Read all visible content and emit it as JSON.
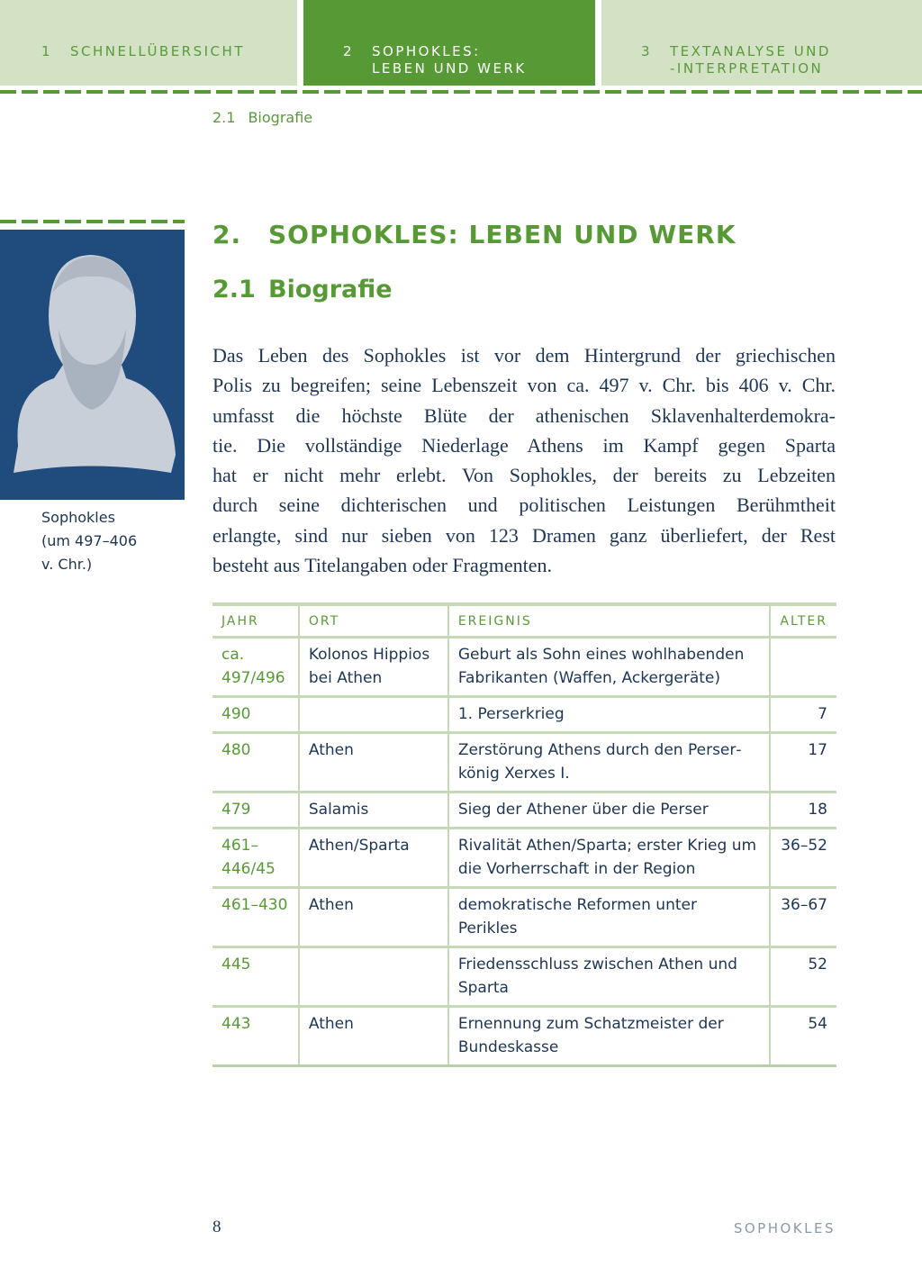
{
  "tabs": [
    {
      "num": "1",
      "label": "SCHNELLÜBERSICHT",
      "active": false
    },
    {
      "num": "2",
      "label_lines": [
        "SOPHOKLES:",
        "LEBEN UND WERK"
      ],
      "active": true
    },
    {
      "num": "3",
      "label_lines": [
        "TEXTANALYSE UND",
        "-INTERPRETATION"
      ],
      "active": false
    }
  ],
  "breadcrumb": {
    "num": "2.1",
    "label": "Biografie"
  },
  "image": {
    "caption_lines": [
      "Sophokles",
      "(um 497–406",
      "v. Chr.)"
    ]
  },
  "heading": {
    "num": "2.",
    "title": "SOPHOKLES: LEBEN UND WERK"
  },
  "subheading": {
    "num": "2.1",
    "title": "Biografie"
  },
  "body_lines": [
    "Das Leben des Sophokles ist vor dem Hintergrund der griechischen",
    "Polis zu begreifen; seine Lebenszeit von ca. 497 v. Chr. bis 406 v. Chr.",
    "umfasst die höchste Blüte der athenischen Sklavenhalterdemokra-",
    "tie. Die vollständige Niederlage Athens im Kampf gegen Sparta",
    "hat er nicht mehr erlebt. Von Sophokles, der bereits zu Lebzeiten",
    "durch seine dichterischen und politischen Leistungen Berühmtheit",
    "erlangte, sind nur sieben von 123 Dramen ganz überliefert, der Rest",
    "besteht aus Titelangaben oder Fragmenten."
  ],
  "table": {
    "headers": [
      "JAHR",
      "ORT",
      "EREIGNIS",
      "ALTER"
    ],
    "rows": [
      [
        "ca. 497/496",
        "Kolonos Hippios bei Athen",
        "Geburt als Sohn eines wohlhabenden Fabrikanten (Waffen, Ackergeräte)",
        ""
      ],
      [
        "490",
        "",
        "1. Perserkrieg",
        "7"
      ],
      [
        "480",
        "Athen",
        "Zerstörung Athens durch den Perser­könig Xerxes I.",
        "17"
      ],
      [
        "479",
        "Salamis",
        "Sieg der Athener über die Perser",
        "18"
      ],
      [
        "461–446/45",
        "Athen/Sparta",
        "Rivalität Athen/Sparta; erster Krieg um die Vorherrschaft in der Region",
        "36–52"
      ],
      [
        "461–430",
        "Athen",
        "demokratische Reformen unter Perikles",
        "36–67"
      ],
      [
        "445",
        "",
        "Friedensschluss zwischen Athen und Sparta",
        "52"
      ],
      [
        "443",
        "Athen",
        "Ernennung zum Schatzmeister der Bun­deskasse",
        "54"
      ]
    ]
  },
  "footer": {
    "page": "8",
    "title": "SOPHOKLES"
  },
  "colors": {
    "accent": "#579a35",
    "tab_light": "#d3e2c5",
    "photo_bg": "#1f4c7d",
    "text": "#1e3555"
  }
}
